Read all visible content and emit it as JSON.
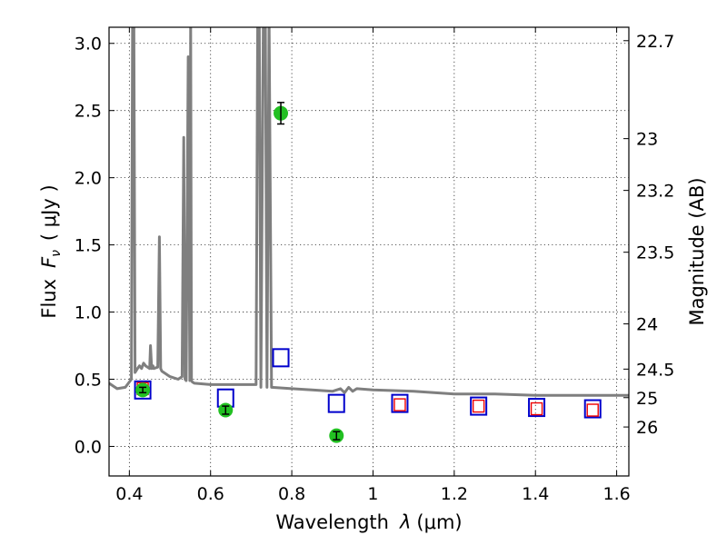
{
  "chart_data": {
    "type": "scatter",
    "xlabel_prefix": "Wavelength",
    "xlabel_symbol": "λ",
    "xlabel_unit": "(μm)",
    "ylabel_prefix": "Flux",
    "ylabel_symbol": "F",
    "ylabel_subscript": "ν",
    "ylabel_unit": "( μJy )",
    "y2label": "Magnitude (AB)",
    "xlim": [
      0.35,
      1.63
    ],
    "ylim": [
      -0.22,
      3.12
    ],
    "grid": true,
    "x_ticks": [
      {
        "value": 0.4,
        "label": "0.4"
      },
      {
        "value": 0.6,
        "label": "0.6"
      },
      {
        "value": 0.8,
        "label": "0.8"
      },
      {
        "value": 1.0,
        "label": "1"
      },
      {
        "value": 1.2,
        "label": "1.2"
      },
      {
        "value": 1.4,
        "label": "1.4"
      },
      {
        "value": 1.6,
        "label": "1.6"
      }
    ],
    "y_ticks": [
      {
        "value": 0.0,
        "label": "0.0"
      },
      {
        "value": 0.5,
        "label": "0.5"
      },
      {
        "value": 1.0,
        "label": "1.0"
      },
      {
        "value": 1.5,
        "label": "1.5"
      },
      {
        "value": 2.0,
        "label": "2.0"
      },
      {
        "value": 2.5,
        "label": "2.5"
      },
      {
        "value": 3.0,
        "label": "3.0"
      }
    ],
    "y2_ticks": [
      {
        "value": 22.7,
        "label": "22.7"
      },
      {
        "value": 23.0,
        "label": "23"
      },
      {
        "value": 23.2,
        "label": "23.2"
      },
      {
        "value": 23.5,
        "label": "23.5"
      },
      {
        "value": 24.0,
        "label": "24"
      },
      {
        "value": 24.5,
        "label": "24.5"
      },
      {
        "value": 25.0,
        "label": "25"
      },
      {
        "value": 26.0,
        "label": "26"
      }
    ],
    "colors": {
      "model": "#7f7f7f",
      "model_photometry": "#0000cc",
      "observed_photometry": "#ee0000",
      "detections": "#22c022",
      "errorbar": "#000000"
    },
    "model_spectrum": {
      "x": [
        0.35,
        0.37,
        0.39,
        0.405,
        0.408,
        0.411,
        0.414,
        0.42,
        0.425,
        0.43,
        0.435,
        0.44,
        0.45,
        0.452,
        0.455,
        0.458,
        0.46,
        0.47,
        0.474,
        0.477,
        0.48,
        0.5,
        0.52,
        0.53,
        0.534,
        0.537,
        0.54,
        0.545,
        0.549,
        0.551,
        0.553,
        0.555,
        0.56,
        0.6,
        0.65,
        0.7,
        0.712,
        0.716,
        0.72,
        0.724,
        0.73,
        0.735,
        0.739,
        0.744,
        0.75,
        0.8,
        0.85,
        0.9,
        0.92,
        0.93,
        0.94,
        0.95,
        0.96,
        1.0,
        1.1,
        1.2,
        1.3,
        1.4,
        1.5,
        1.63
      ],
      "y": [
        0.47,
        0.43,
        0.44,
        0.5,
        3.2,
        3.2,
        0.55,
        0.58,
        0.6,
        0.58,
        0.62,
        0.6,
        0.58,
        0.75,
        0.58,
        0.6,
        0.58,
        0.59,
        1.56,
        0.58,
        0.56,
        0.52,
        0.5,
        0.52,
        2.3,
        0.5,
        0.49,
        2.9,
        0.49,
        3.2,
        0.49,
        0.48,
        0.47,
        0.46,
        0.46,
        0.46,
        0.46,
        3.2,
        3.2,
        0.44,
        3.2,
        3.2,
        0.44,
        3.2,
        0.44,
        0.43,
        0.42,
        0.41,
        0.43,
        0.4,
        0.44,
        0.41,
        0.43,
        0.42,
        0.41,
        0.39,
        0.39,
        0.38,
        0.38,
        0.38
      ]
    },
    "model_photometry": {
      "x": [
        0.433,
        0.637,
        0.773,
        0.91,
        1.066,
        1.26,
        1.403,
        1.541
      ],
      "y": [
        0.42,
        0.36,
        0.66,
        0.32,
        0.32,
        0.3,
        0.29,
        0.28
      ]
    },
    "observed_photometry": {
      "x": [
        0.433,
        1.066,
        1.26,
        1.403,
        1.541
      ],
      "y": [
        0.43,
        0.31,
        0.3,
        0.28,
        0.27
      ]
    },
    "detections": {
      "x": [
        0.433,
        0.637,
        0.773,
        0.91
      ],
      "y": [
        0.42,
        0.27,
        2.48,
        0.08
      ],
      "err": [
        0.02,
        0.03,
        0.08,
        0.03
      ]
    }
  }
}
